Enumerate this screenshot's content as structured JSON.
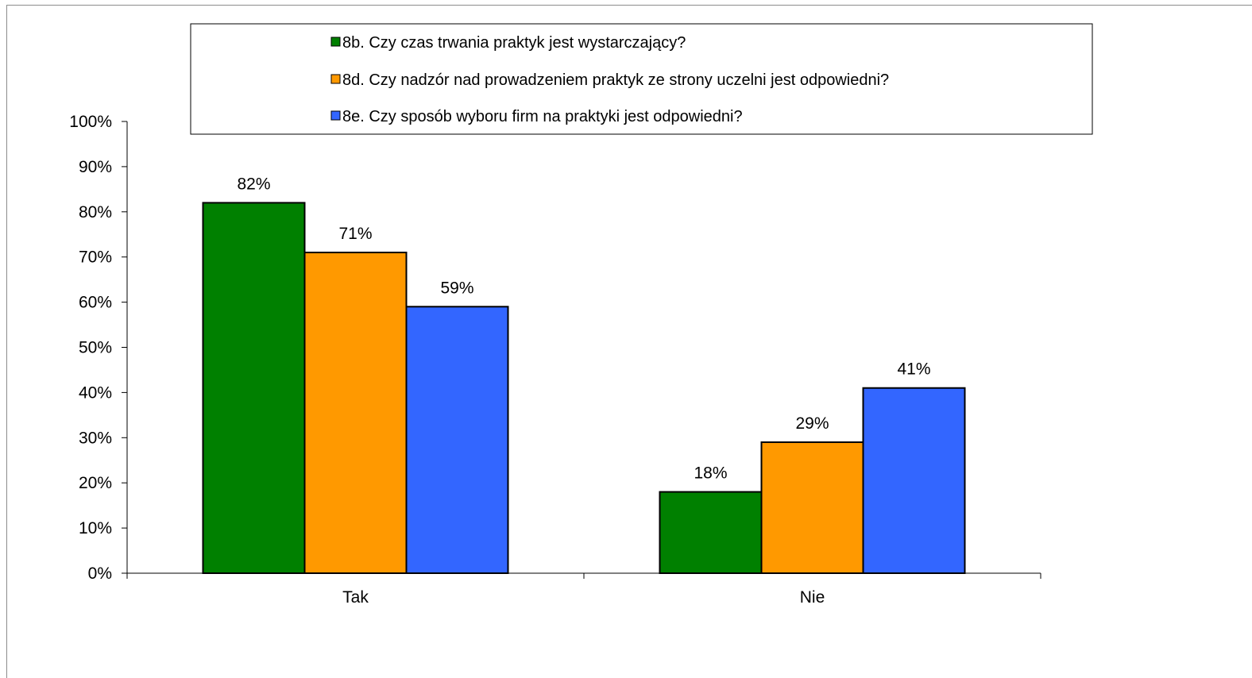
{
  "chart_data": {
    "type": "bar",
    "title": "",
    "xlabel": "",
    "ylabel": "",
    "categories": [
      "Tak",
      "Nie"
    ],
    "series": [
      {
        "name": "8b. Czy czas trwania praktyk jest wystarczający?",
        "color": "#008000",
        "values": [
          82,
          18
        ],
        "labels": [
          "82%",
          "18%"
        ]
      },
      {
        "name": "8d. Czy nadzór nad prowadzeniem praktyk ze strony uczelni jest odpowiedni?",
        "color": "#ff9900",
        "values": [
          71,
          29
        ],
        "labels": [
          "71%",
          "29%"
        ]
      },
      {
        "name": "8e. Czy sposób wyboru firm na praktyki jest odpowiedni?",
        "color": "#3366ff",
        "values": [
          59,
          41
        ],
        "labels": [
          "59%",
          "41%"
        ]
      }
    ],
    "ylim": [
      0,
      100
    ],
    "yticks": [
      "0%",
      "10%",
      "20%",
      "30%",
      "40%",
      "50%",
      "60%",
      "70%",
      "80%",
      "90%",
      "100%"
    ],
    "grid": false,
    "legend_position": "top"
  }
}
